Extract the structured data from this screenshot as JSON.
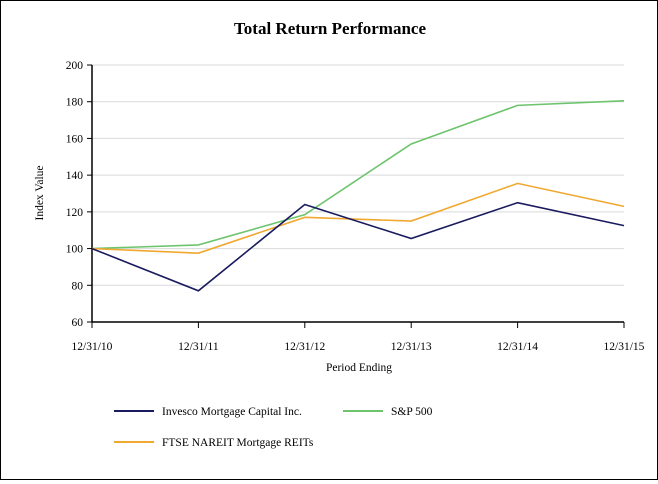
{
  "chart_data": {
    "type": "line",
    "title": "Total Return Performance",
    "xlabel": "Period Ending",
    "ylabel": "Index Value",
    "ylim": [
      60,
      200
    ],
    "yticks": [
      "60",
      "80",
      "100",
      "120",
      "140",
      "160",
      "180",
      "200"
    ],
    "categories": [
      "12/31/10",
      "12/31/11",
      "12/31/12",
      "12/31/13",
      "12/31/14",
      "12/31/15"
    ],
    "grid": true,
    "legend_position": "bottom",
    "series": [
      {
        "name": "Invesco Mortgage Capital Inc.",
        "color": "#1a1a5e",
        "values": [
          100,
          77,
          124,
          105.5,
          125,
          112.5
        ]
      },
      {
        "name": "S&P 500",
        "color": "#6dc46d",
        "values": [
          100,
          102,
          118.5,
          157,
          178,
          180.5
        ]
      },
      {
        "name": "FTSE NAREIT Mortgage REITs",
        "color": "#f0a830",
        "values": [
          100,
          97.5,
          117,
          115,
          135.5,
          123
        ]
      }
    ]
  }
}
